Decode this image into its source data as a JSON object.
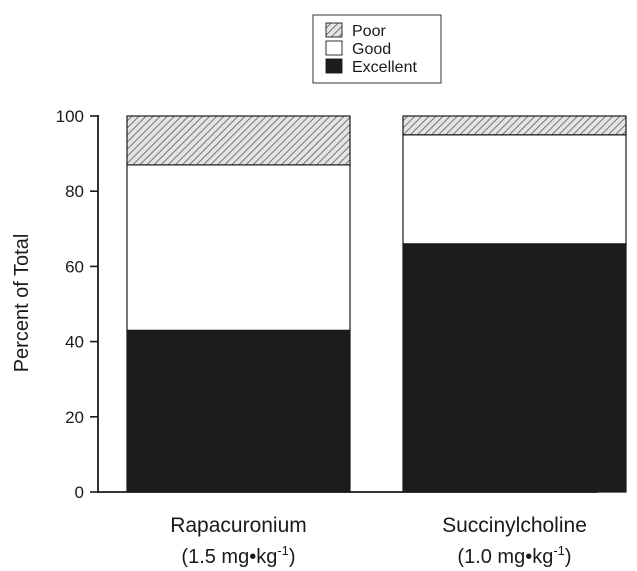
{
  "chart_data": {
    "type": "bar",
    "stacked": true,
    "categories": [
      "Rapacuronium",
      "Succinylcholine"
    ],
    "category_sublabels": [
      {
        "prefix": "(1.5 mg•kg",
        "exponent": "-1",
        "suffix": ")"
      },
      {
        "prefix": "(1.0 mg•kg",
        "exponent": "-1",
        "suffix": ")"
      }
    ],
    "series": [
      {
        "name": "Excellent",
        "values": [
          43,
          66
        ],
        "color": "#1c1c1c",
        "pattern": "solid"
      },
      {
        "name": "Good",
        "values": [
          44,
          29
        ],
        "color": "#ffffff",
        "pattern": "solid"
      },
      {
        "name": "Poor",
        "values": [
          13,
          5
        ],
        "color": "#9a9a9a",
        "pattern": "hatch"
      }
    ],
    "legend_order": [
      "Poor",
      "Good",
      "Excellent"
    ],
    "legend_position": "top-center",
    "ylabel": "Percent of Total",
    "xlabel": "",
    "title": "",
    "ylim": [
      0,
      100
    ],
    "yticks": [
      0,
      20,
      40,
      60,
      80,
      100
    ],
    "grid": false
  }
}
